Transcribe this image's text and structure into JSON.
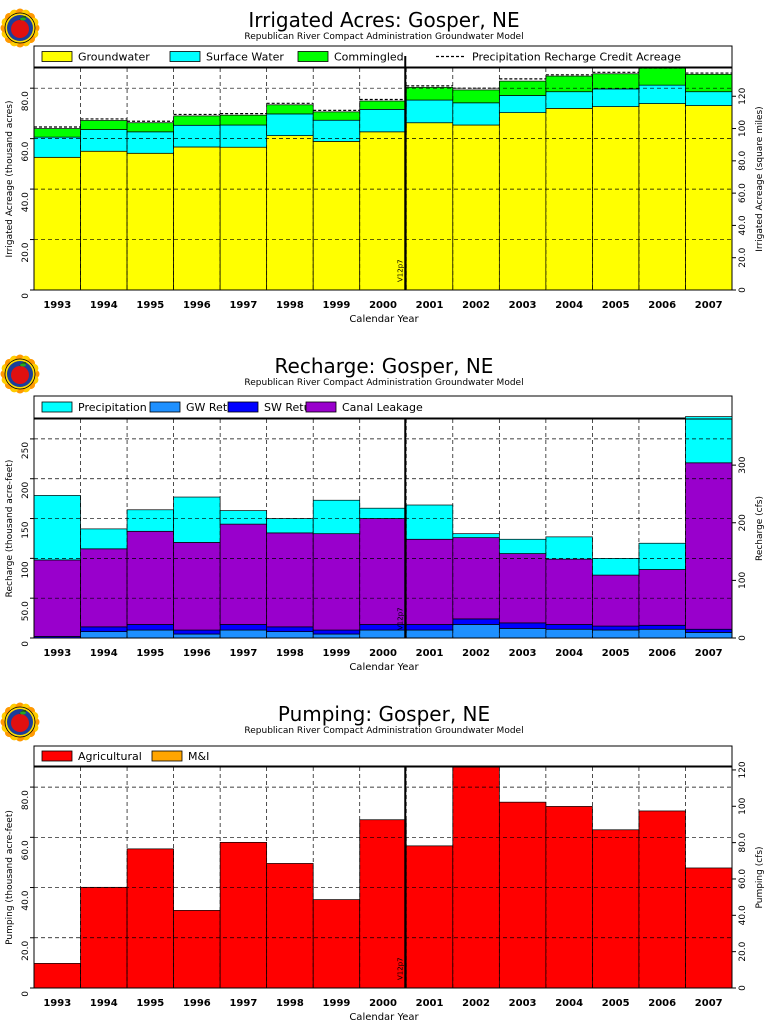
{
  "years": [
    "1993",
    "1994",
    "1995",
    "1996",
    "1997",
    "1998",
    "1999",
    "2000",
    "2001",
    "2002",
    "2003",
    "2004",
    "2005",
    "2006",
    "2007"
  ],
  "xlabel": "Calendar Year",
  "subtitle": "Republican River Compact Administration Groundwater Model",
  "marker_label": "V12p7",
  "colors": {
    "groundwater": "#ffff00",
    "surface_water": "#00ffff",
    "commingled": "#00ff00",
    "gw_returns": "#1e90ff",
    "sw_returns": "#0000ff",
    "canal_leakage": "#9900cc",
    "agricultural": "#ff0000",
    "mi": "#ffa500"
  },
  "chart_data": [
    {
      "type": "area",
      "title": "Irrigated Acres: Gosper, NE",
      "ylabel": "Irrigated Acreage (thousand acres)",
      "y2label": "Irrigated Acreage (square miles)",
      "ylim": [
        0,
        88
      ],
      "yticks": [
        0,
        20,
        40,
        60,
        80
      ],
      "ytick_labels": [
        "0",
        "20.0",
        "40.0",
        "60.0",
        "80.0"
      ],
      "y2ticks": [
        0,
        20,
        40,
        60,
        80,
        100,
        120
      ],
      "y2tick_labels": [
        "0",
        "20.0",
        "40.0",
        "60.0",
        "80.0",
        "100",
        "120"
      ],
      "y2_factor": 1.5625,
      "legend_placement": "top",
      "grid": true,
      "legend": [
        "Groundwater",
        "Surface Water",
        "Commingled",
        "Precipitation Recharge Credit Acreage"
      ],
      "series": [
        {
          "name": "Groundwater",
          "color_key": "groundwater",
          "values": [
            52.6,
            55.0,
            54.2,
            56.7,
            56.6,
            61.2,
            58.9,
            62.7,
            66.3,
            65.4,
            70.3,
            72.0,
            72.7,
            73.9,
            73.1
          ]
        },
        {
          "name": "Surface Water",
          "color_key": "surface_water",
          "values": [
            8.0,
            8.6,
            8.5,
            8.6,
            8.8,
            8.6,
            8.4,
            8.9,
            9.0,
            8.8,
            6.8,
            6.6,
            7.0,
            7.3,
            5.5
          ]
        },
        {
          "name": "Commingled",
          "color_key": "commingled",
          "values": [
            3.4,
            3.6,
            3.6,
            3.7,
            3.9,
            3.6,
            3.3,
            3.3,
            5.0,
            5.1,
            5.7,
            6.2,
            6.0,
            6.8,
            6.9
          ]
        }
      ],
      "overlay": {
        "name": "Precipitation Recharge Credit Acreage",
        "values": [
          64.6,
          67.8,
          66.9,
          69.6,
          69.9,
          74.0,
          71.2,
          75.5,
          80.9,
          80.0,
          83.7,
          85.3,
          86.3,
          88.0,
          86.0
        ]
      }
    },
    {
      "type": "area",
      "title": "Recharge: Gosper, NE",
      "ylabel": "Recharge (thousand acre-feet)",
      "y2label": "Recharge (cfs)",
      "ylim": [
        0,
        275
      ],
      "yticks": [
        0,
        50,
        100,
        150,
        200,
        250
      ],
      "ytick_labels": [
        "0",
        "50.0",
        "100",
        "150",
        "200",
        "250"
      ],
      "y2ticks": [
        0,
        100,
        200,
        300
      ],
      "y2tick_labels": [
        "0",
        "100",
        "200",
        "300"
      ],
      "y2_factor": 1.382,
      "legend_placement": "top",
      "grid": true,
      "legend": [
        "Precipitation",
        "GW Returns",
        "SW Returns",
        "Canal Leakage"
      ],
      "series": [
        {
          "name": "GW Returns",
          "color_key": "gw_returns",
          "values": [
            0,
            8,
            10,
            5,
            10,
            8,
            5,
            10,
            10,
            17,
            12,
            11,
            10,
            11,
            7
          ]
        },
        {
          "name": "SW Returns",
          "color_key": "sw_returns",
          "values": [
            2,
            6,
            7,
            5,
            7,
            6,
            5,
            7,
            7,
            7,
            7,
            6,
            5,
            5,
            4
          ]
        },
        {
          "name": "Canal Leakage",
          "color_key": "canal_leakage",
          "values": [
            96,
            98,
            117,
            110,
            126,
            118,
            121,
            133,
            107,
            102,
            87,
            82,
            64,
            70,
            209
          ]
        },
        {
          "name": "Precipitation",
          "color_key": "surface_water",
          "values": [
            81,
            25,
            27,
            57,
            17,
            18,
            42,
            13,
            43,
            5,
            18,
            28,
            21,
            33,
            58
          ]
        }
      ]
    },
    {
      "type": "bar",
      "title": "Pumping: Gosper, NE",
      "ylabel": "Pumping (thousand acre-feet)",
      "y2label": "Pumping (cfs)",
      "ylim": [
        0,
        88
      ],
      "yticks": [
        0,
        20,
        40,
        60,
        80
      ],
      "ytick_labels": [
        "0",
        "20.0",
        "40.0",
        "60.0",
        "80.0"
      ],
      "y2ticks": [
        0,
        20,
        40,
        60,
        80,
        100,
        120
      ],
      "y2tick_labels": [
        "0",
        "20.0",
        "40.0",
        "60.0",
        "80.0",
        "100",
        "120"
      ],
      "y2_factor": 1.382,
      "legend_placement": "top",
      "grid": true,
      "legend": [
        "Agricultural",
        "M&I"
      ],
      "series": [
        {
          "name": "Agricultural",
          "color_key": "agricultural",
          "values": [
            9.8,
            40.1,
            55.4,
            30.9,
            58.0,
            49.6,
            35.2,
            67.0,
            56.6,
            88.0,
            74.0,
            72.3,
            63.0,
            70.5,
            47.8
          ]
        },
        {
          "name": "M&I",
          "color_key": "mi",
          "values": [
            0,
            0,
            0,
            0,
            0,
            0,
            0,
            0,
            0,
            0,
            0,
            0,
            0,
            0,
            0
          ]
        }
      ]
    }
  ]
}
